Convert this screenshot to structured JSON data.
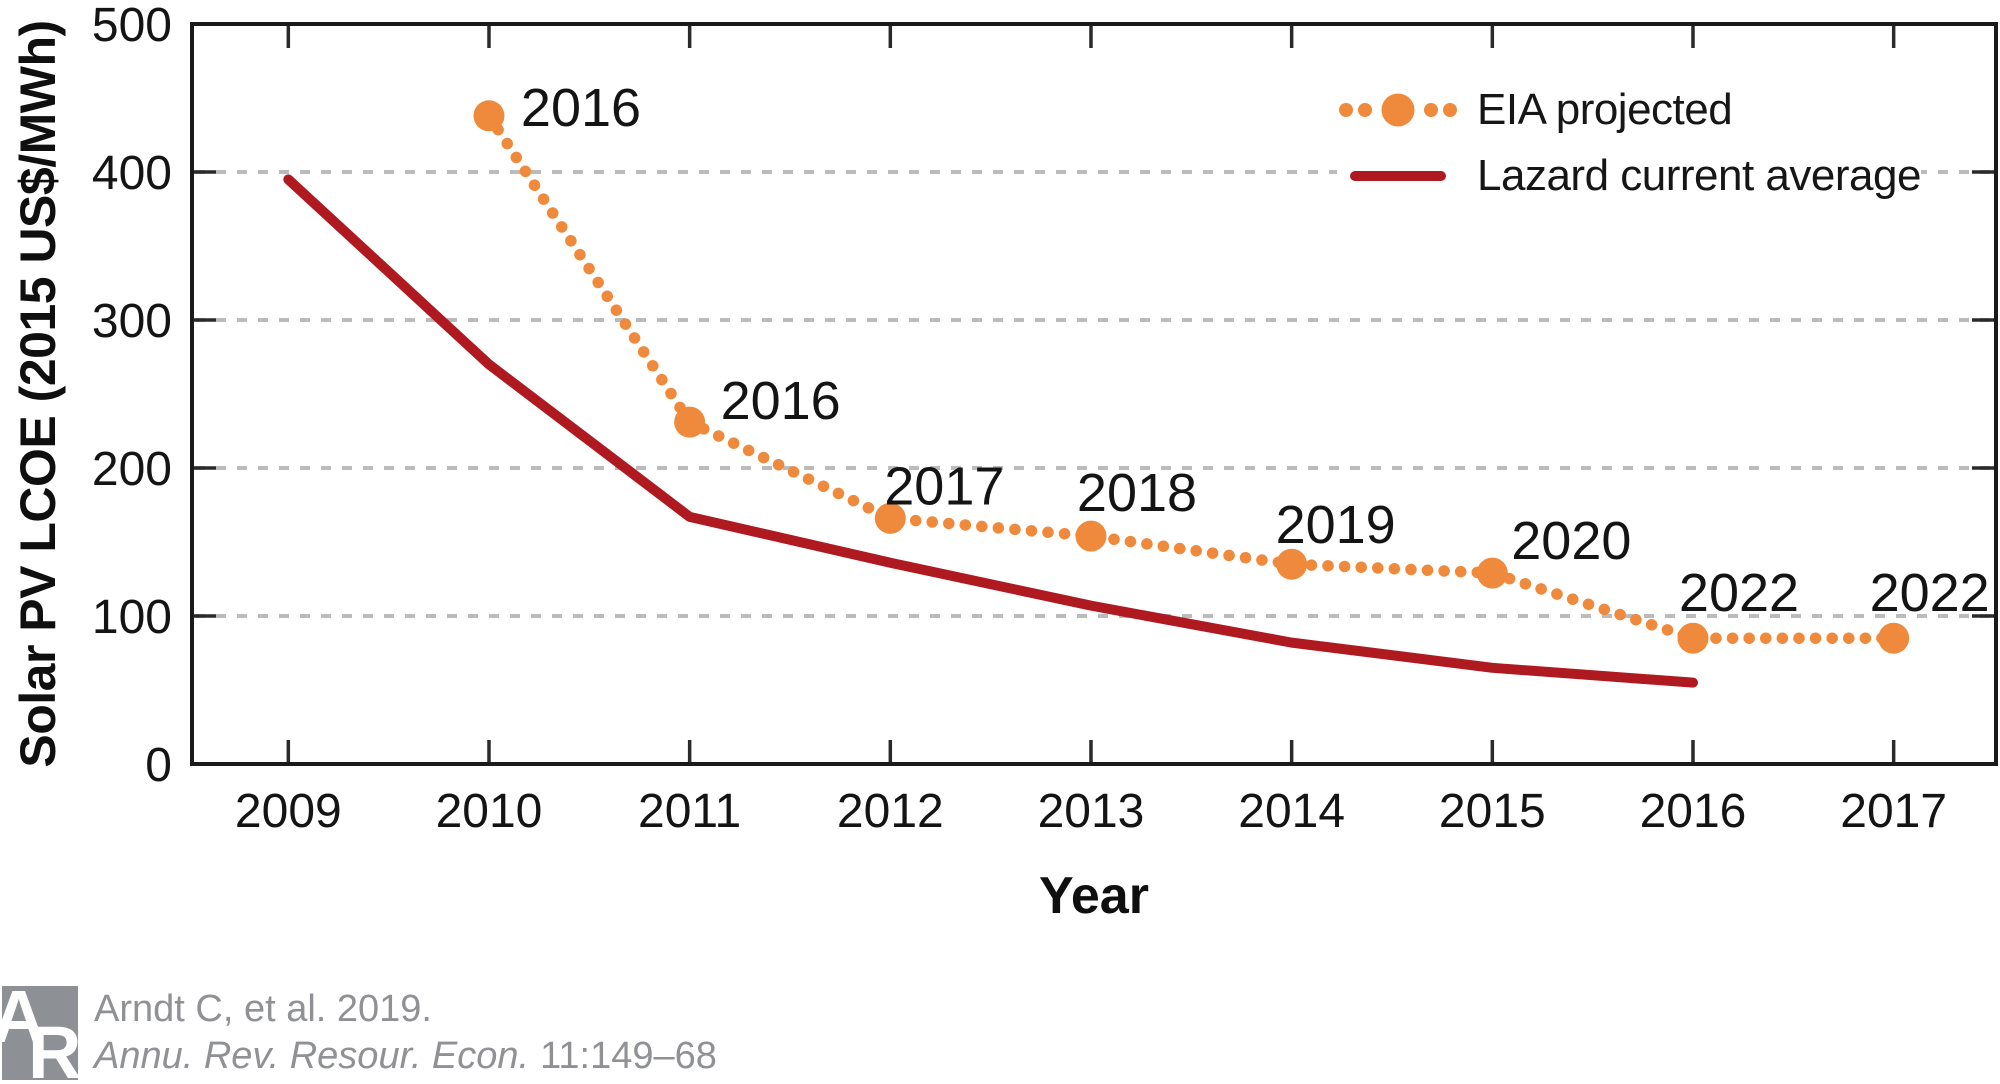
{
  "figure": {
    "background": "#ffffff",
    "axis_color": "#1a1a1a",
    "tick_color": "#2a2a2a"
  },
  "chart_data": {
    "type": "line",
    "title": "",
    "xlabel": "Year",
    "ylabel": "Solar PV LCOE (2015 US$/MWh)",
    "x_range": [
      2008.52,
      2017.51
    ],
    "y_range": [
      0,
      500
    ],
    "x_ticks": [
      2009,
      2010,
      2011,
      2012,
      2013,
      2014,
      2015,
      2016,
      2017
    ],
    "y_ticks": [
      0,
      100,
      200,
      300,
      400,
      500
    ],
    "gridlines": {
      "axis": "y",
      "at": [
        100,
        200,
        300,
        400
      ],
      "style": "dashed",
      "color": "#bbbbbb"
    },
    "legend_position": "top-right-inside",
    "series": [
      {
        "name": "EIA projected",
        "type": "dotted-line-with-markers",
        "color": "#EF8A3C",
        "label_color": "#C2611F",
        "x": [
          2010,
          2011,
          2012,
          2013,
          2014,
          2015,
          2016,
          2017
        ],
        "values": [
          438,
          231,
          166,
          154,
          135,
          129,
          85,
          85
        ],
        "point_labels": [
          {
            "text": "2016",
            "dx": 92,
            "dy": -9
          },
          {
            "text": "2016",
            "dx": 91,
            "dy": -22
          },
          {
            "text": "2017",
            "dx": 54,
            "dy": -33
          },
          {
            "text": "2018",
            "dx": 46,
            "dy": -44
          },
          {
            "text": "2019",
            "dx": 44,
            "dy": -40
          },
          {
            "text": "2020",
            "dx": 79,
            "dy": -33
          },
          {
            "text": "2022",
            "dx": 46,
            "dy": -46
          },
          {
            "text": "2022",
            "dx": 36,
            "dy": -46
          }
        ]
      },
      {
        "name": "Lazard current average",
        "type": "solid-line",
        "color": "#AF1A20",
        "x": [
          2009,
          2010,
          2011,
          2012,
          2013,
          2014,
          2015,
          2016
        ],
        "values": [
          395,
          270,
          167,
          136,
          107,
          82,
          65,
          55
        ]
      }
    ]
  },
  "citation": {
    "line1": "Arndt C, et al. 2019.",
    "journal": "Annu. Rev. Resour. Econ.",
    "volume_pages": "11:149–68",
    "logo_letter_a": "A",
    "logo_letter_r": "R",
    "color": "#8f9195"
  }
}
